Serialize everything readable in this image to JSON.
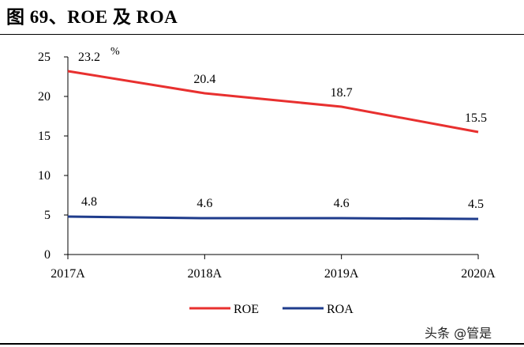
{
  "title": "图 69、ROE 及 ROA",
  "watermark": "头条 @管是",
  "chart_data": {
    "type": "line",
    "categories": [
      "2017A",
      "2018A",
      "2019A",
      "2020A"
    ],
    "series": [
      {
        "name": "ROE",
        "values": [
          23.2,
          20.4,
          18.7,
          15.5
        ],
        "color": "#e8302f"
      },
      {
        "name": "ROA",
        "values": [
          4.8,
          4.6,
          4.6,
          4.5
        ],
        "color": "#1f3c8c"
      }
    ],
    "ylim": [
      0,
      25
    ],
    "yticks": [
      0,
      5,
      10,
      15,
      20,
      25
    ],
    "yunit": "%",
    "grid": false,
    "legend_position": "bottom"
  }
}
